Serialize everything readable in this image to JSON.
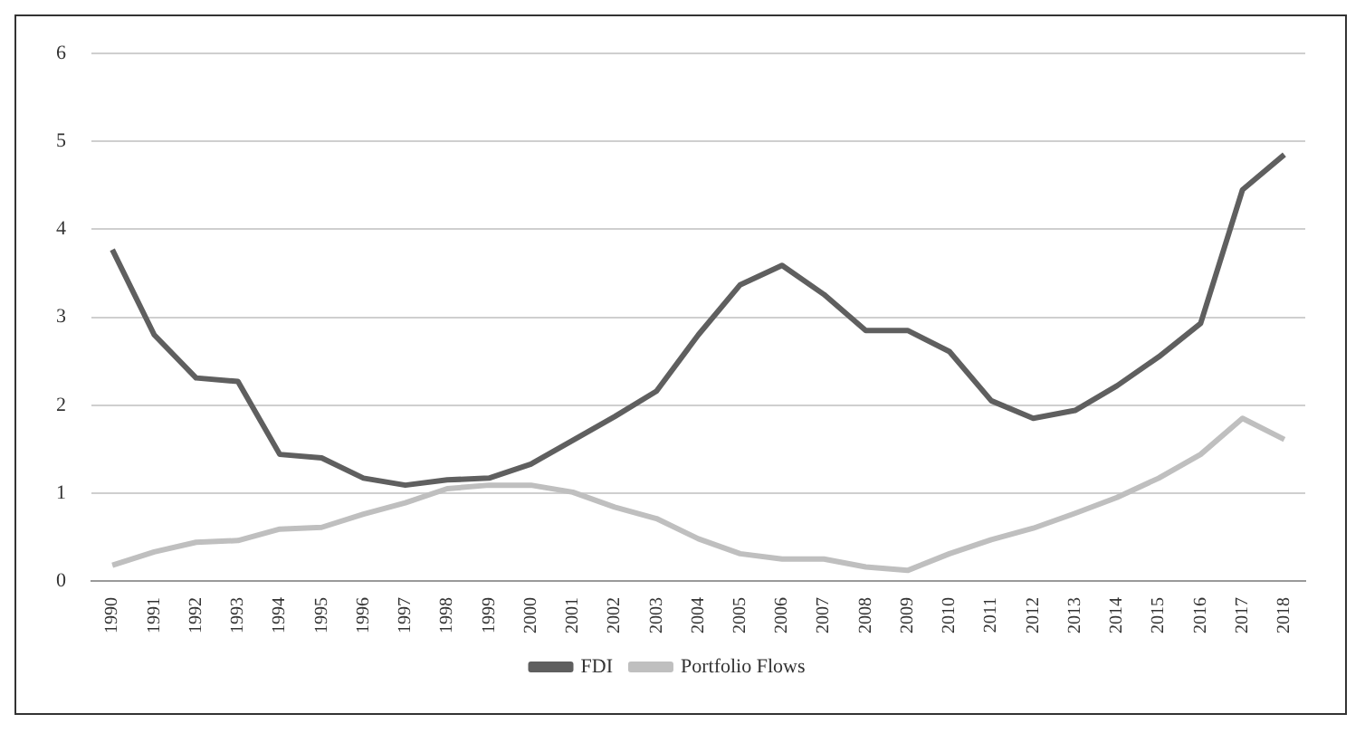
{
  "chart_data": {
    "type": "line",
    "categories": [
      "1990",
      "1991",
      "1992",
      "1993",
      "1994",
      "1995",
      "1996",
      "1997",
      "1998",
      "1999",
      "2000",
      "2001",
      "2002",
      "2003",
      "2004",
      "2005",
      "2006",
      "2007",
      "2008",
      "2009",
      "2010",
      "2011",
      "2012",
      "2013",
      "2014",
      "2015",
      "2016",
      "2017",
      "2018"
    ],
    "series": [
      {
        "name": "FDI",
        "color": "#5f5f5f",
        "values": [
          3.77,
          2.8,
          2.31,
          2.27,
          1.44,
          1.4,
          1.17,
          1.09,
          1.15,
          1.17,
          1.33,
          1.6,
          1.87,
          2.16,
          2.8,
          3.37,
          3.59,
          3.26,
          2.85,
          2.85,
          2.61,
          2.05,
          1.85,
          1.94,
          2.22,
          2.55,
          2.93,
          4.45,
          4.85
        ]
      },
      {
        "name": "Portfolio Flows",
        "color": "#bfbfbf",
        "values": [
          0.18,
          0.33,
          0.44,
          0.46,
          0.59,
          0.61,
          0.76,
          0.89,
          1.05,
          1.09,
          1.09,
          1.01,
          0.84,
          0.71,
          0.48,
          0.31,
          0.25,
          0.25,
          0.16,
          0.12,
          0.31,
          0.47,
          0.6,
          0.77,
          0.95,
          1.17,
          1.44,
          1.85,
          1.61
        ]
      }
    ],
    "ylim": [
      0,
      6
    ],
    "yticks": [
      0,
      1,
      2,
      3,
      4,
      5,
      6
    ],
    "grid": "y",
    "legend": "bottom",
    "marker": "none",
    "line_style": "solid"
  }
}
